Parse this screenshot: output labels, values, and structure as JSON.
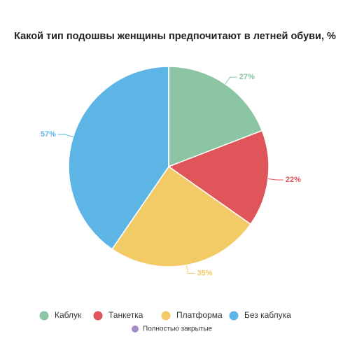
{
  "chart_data": {
    "type": "pie",
    "title": "Какой тип подошвы женщины предпочитают в летней обуви, %",
    "categories": [
      "Каблук",
      "Танкетка",
      "Платформа",
      "Без каблука",
      "Полностью закрытые"
    ],
    "values": [
      27,
      22,
      35,
      57,
      0
    ],
    "value_labels": [
      "27%",
      "22%",
      "35%",
      "57%",
      null
    ],
    "colors": [
      "#8cc5a3",
      "#e05559",
      "#f2cb66",
      "#5db5e6",
      "#a98bcb"
    ]
  }
}
